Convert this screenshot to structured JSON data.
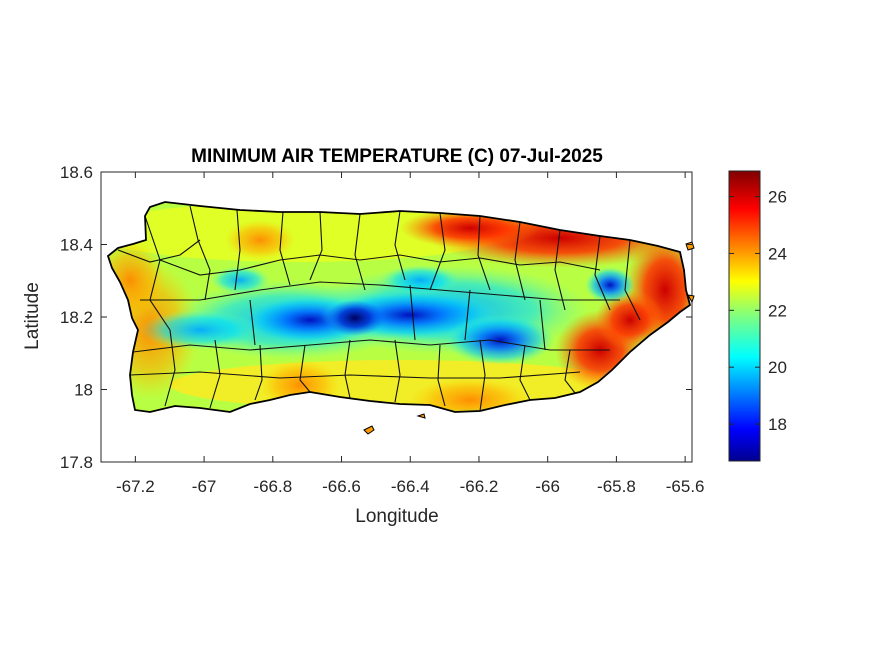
{
  "title": "MINIMUM AIR TEMPERATURE (C) 07-Jul-2025",
  "xlabel": "Longitude",
  "ylabel": "Latitude",
  "xticks": [
    {
      "value": -67.2,
      "label": "-67.2"
    },
    {
      "value": -67.0,
      "label": "-67"
    },
    {
      "value": -66.8,
      "label": "-66.8"
    },
    {
      "value": -66.6,
      "label": "-66.6"
    },
    {
      "value": -66.4,
      "label": "-66.4"
    },
    {
      "value": -66.2,
      "label": "-66.2"
    },
    {
      "value": -66.0,
      "label": "-66"
    },
    {
      "value": -65.8,
      "label": "-65.8"
    },
    {
      "value": -65.6,
      "label": "-65.6"
    }
  ],
  "yticks": [
    {
      "value": 18.6,
      "label": "18.6"
    },
    {
      "value": 18.4,
      "label": "18.4"
    },
    {
      "value": 18.2,
      "label": "18.2"
    },
    {
      "value": 18.0,
      "label": "18"
    },
    {
      "value": 17.8,
      "label": "17.8"
    }
  ],
  "colorbar": {
    "ticks": [
      {
        "value": 18,
        "label": "18"
      },
      {
        "value": 20,
        "label": "20"
      },
      {
        "value": 22,
        "label": "22"
      },
      {
        "value": 24,
        "label": "24"
      },
      {
        "value": 26,
        "label": "26"
      }
    ]
  },
  "chart_data": {
    "type": "heatmap",
    "title": "MINIMUM AIR TEMPERATURE (C) 07-Jul-2025",
    "xlabel": "Longitude",
    "ylabel": "Latitude",
    "xlim": [
      -67.3,
      -65.58
    ],
    "ylim": [
      17.8,
      18.6
    ],
    "color_range": [
      16.7,
      26.9
    ],
    "colormap": "jet",
    "colorbar_ticks": [
      18,
      20,
      22,
      24,
      26
    ],
    "grid": false,
    "hotspots": [
      {
        "lon": -65.65,
        "lat": 18.3,
        "temp": 26.5
      },
      {
        "lon": -65.9,
        "lat": 18.42,
        "temp": 26.0
      },
      {
        "lon": -66.1,
        "lat": 18.44,
        "temp": 25.5
      },
      {
        "lon": -65.85,
        "lat": 18.05,
        "temp": 25.5
      },
      {
        "lon": -66.3,
        "lat": 17.97,
        "temp": 25.0
      },
      {
        "lon": -67.2,
        "lat": 18.05,
        "temp": 24.5
      },
      {
        "lon": -66.55,
        "lat": 18.17,
        "temp": 17.5
      },
      {
        "lon": -66.8,
        "lat": 18.15,
        "temp": 19.5
      },
      {
        "lon": -66.2,
        "lat": 18.15,
        "temp": 20.0
      },
      {
        "lon": -65.8,
        "lat": 18.3,
        "temp": 20.5
      }
    ]
  }
}
